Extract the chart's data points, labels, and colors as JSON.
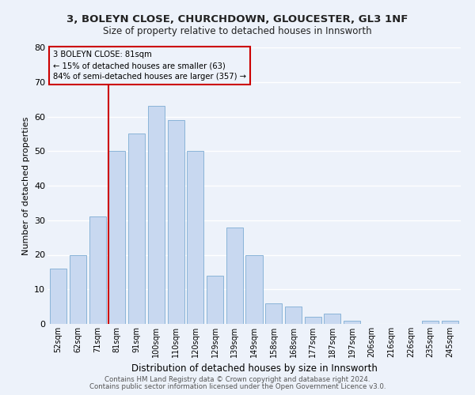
{
  "title1": "3, BOLEYN CLOSE, CHURCHDOWN, GLOUCESTER, GL3 1NF",
  "title2": "Size of property relative to detached houses in Innsworth",
  "xlabel": "Distribution of detached houses by size in Innsworth",
  "ylabel": "Number of detached properties",
  "bar_labels": [
    "52sqm",
    "62sqm",
    "71sqm",
    "81sqm",
    "91sqm",
    "100sqm",
    "110sqm",
    "120sqm",
    "129sqm",
    "139sqm",
    "149sqm",
    "158sqm",
    "168sqm",
    "177sqm",
    "187sqm",
    "197sqm",
    "206sqm",
    "216sqm",
    "226sqm",
    "235sqm",
    "245sqm"
  ],
  "bar_values": [
    16,
    20,
    31,
    50,
    55,
    63,
    59,
    50,
    14,
    28,
    20,
    6,
    5,
    2,
    3,
    1,
    0,
    0,
    0,
    1,
    1
  ],
  "bar_color": "#c8d8f0",
  "bar_edge_color": "#8ab4d8",
  "red_line_index": 3,
  "annotation_text": "3 BOLEYN CLOSE: 81sqm\n← 15% of detached houses are smaller (63)\n84% of semi-detached houses are larger (357) →",
  "annotation_box_edge": "#cc0000",
  "ylim": [
    0,
    80
  ],
  "yticks": [
    0,
    10,
    20,
    30,
    40,
    50,
    60,
    70,
    80
  ],
  "footer1": "Contains HM Land Registry data © Crown copyright and database right 2024.",
  "footer2": "Contains public sector information licensed under the Open Government Licence v3.0.",
  "background_color": "#edf2fa",
  "grid_color": "#ffffff"
}
